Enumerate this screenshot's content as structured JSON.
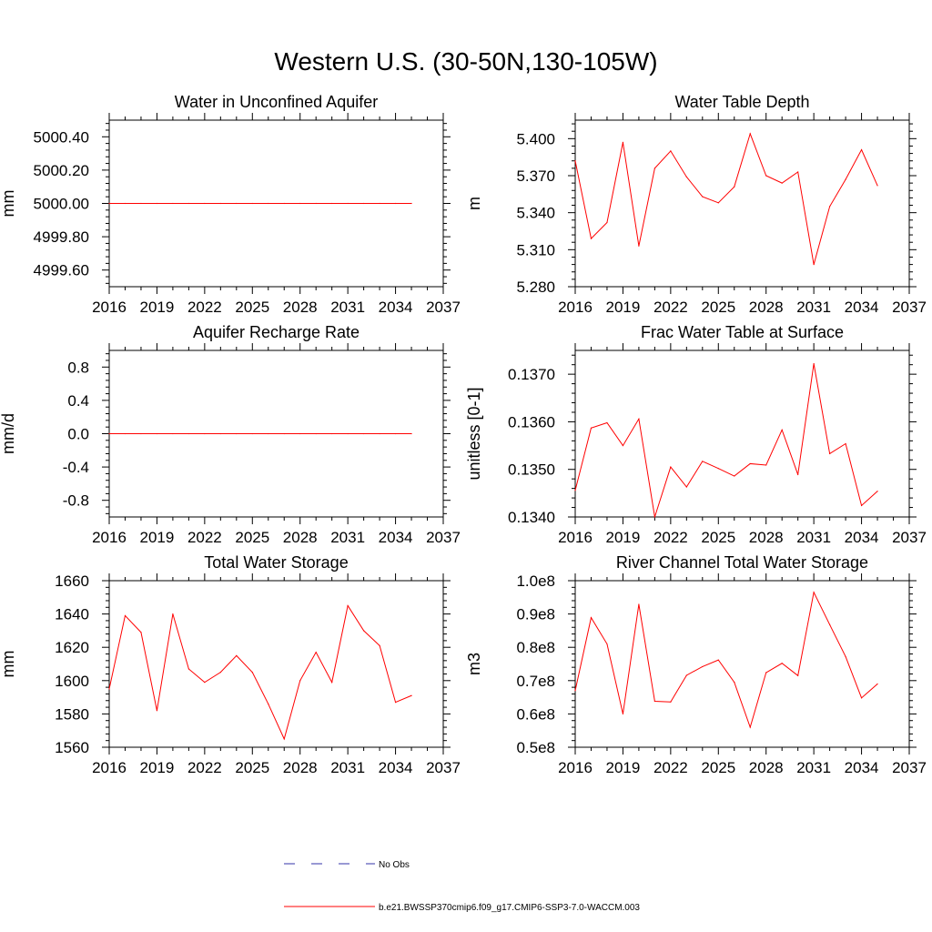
{
  "title": "Western U.S. (30-50N,130-105W)",
  "colors": {
    "series": "#ff0000",
    "obs": "#3333aa",
    "axis": "#000000"
  },
  "legend": {
    "obs_label": "No Obs",
    "model_label": "b.e21.BWSSP370cmip6.f09_g17.CMIP6-SSP3-7.0-WACCM.003"
  },
  "chart_data": [
    {
      "type": "line",
      "title": "Water in Unconfined Aquifer",
      "xlabel": "",
      "ylabel": "mm",
      "xlim": [
        2016,
        2037
      ],
      "ylim": [
        4999.5,
        5000.5
      ],
      "x_ticks": [
        2016,
        2019,
        2022,
        2025,
        2028,
        2031,
        2034,
        2037
      ],
      "y_ticks": [
        4999.6,
        4999.8,
        5000.0,
        5000.2,
        5000.4
      ],
      "y_tick_labels": [
        "4999.60",
        "4999.80",
        "5000.00",
        "5000.20",
        "5000.40"
      ],
      "x": [
        2016,
        2017,
        2018,
        2019,
        2020,
        2021,
        2022,
        2023,
        2024,
        2025,
        2026,
        2027,
        2028,
        2029,
        2030,
        2031,
        2032,
        2033,
        2034,
        2035
      ],
      "series": [
        {
          "values": [
            5000.0,
            5000.0,
            5000.0,
            5000.0,
            5000.0,
            5000.0,
            5000.0,
            5000.0,
            5000.0,
            5000.0,
            5000.0,
            5000.0,
            5000.0,
            5000.0,
            5000.0,
            5000.0,
            5000.0,
            5000.0,
            5000.0,
            5000.0
          ]
        }
      ]
    },
    {
      "type": "line",
      "title": "Water Table Depth",
      "xlabel": "",
      "ylabel": "m",
      "xlim": [
        2016,
        2037
      ],
      "ylim": [
        5.28,
        5.415
      ],
      "x_ticks": [
        2016,
        2019,
        2022,
        2025,
        2028,
        2031,
        2034,
        2037
      ],
      "y_ticks": [
        5.28,
        5.31,
        5.34,
        5.37,
        5.4
      ],
      "y_tick_labels": [
        "5.280",
        "5.310",
        "5.340",
        "5.370",
        "5.400"
      ],
      "x": [
        2016,
        2017,
        2018,
        2019,
        2020,
        2021,
        2022,
        2023,
        2024,
        2025,
        2026,
        2027,
        2028,
        2029,
        2030,
        2031,
        2032,
        2033,
        2034,
        2035
      ],
      "series": [
        {
          "values": [
            5.382,
            5.319,
            5.332,
            5.397,
            5.313,
            5.376,
            5.39,
            5.369,
            5.353,
            5.348,
            5.361,
            5.404,
            5.37,
            5.364,
            5.373,
            5.298,
            5.345,
            5.367,
            5.391,
            5.362
          ]
        }
      ]
    },
    {
      "type": "line",
      "title": "Aquifer Recharge Rate",
      "xlabel": "",
      "ylabel": "mm/d",
      "xlim": [
        2016,
        2037
      ],
      "ylim": [
        -1.0,
        1.0
      ],
      "x_ticks": [
        2016,
        2019,
        2022,
        2025,
        2028,
        2031,
        2034,
        2037
      ],
      "y_ticks": [
        -0.8,
        -0.4,
        0.0,
        0.4,
        0.8
      ],
      "y_tick_labels": [
        "-0.8",
        "-0.4",
        "0.0",
        "0.4",
        "0.8"
      ],
      "x": [
        2016,
        2017,
        2018,
        2019,
        2020,
        2021,
        2022,
        2023,
        2024,
        2025,
        2026,
        2027,
        2028,
        2029,
        2030,
        2031,
        2032,
        2033,
        2034,
        2035
      ],
      "series": [
        {
          "values": [
            0,
            0,
            0,
            0,
            0,
            0,
            0,
            0,
            0,
            0,
            0,
            0,
            0,
            0,
            0,
            0,
            0,
            0,
            0,
            0
          ]
        }
      ]
    },
    {
      "type": "line",
      "title": "Frac Water Table at Surface",
      "xlabel": "",
      "ylabel": "unitless [0-1]",
      "xlim": [
        2016,
        2037
      ],
      "ylim": [
        0.134,
        0.1375
      ],
      "x_ticks": [
        2016,
        2019,
        2022,
        2025,
        2028,
        2031,
        2034,
        2037
      ],
      "y_ticks": [
        0.134,
        0.135,
        0.136,
        0.137
      ],
      "y_tick_labels": [
        "0.1340",
        "0.1350",
        "0.1360",
        "0.1370"
      ],
      "x": [
        2016,
        2017,
        2018,
        2019,
        2020,
        2021,
        2022,
        2023,
        2024,
        2025,
        2026,
        2027,
        2028,
        2029,
        2030,
        2031,
        2032,
        2033,
        2034,
        2035
      ],
      "series": [
        {
          "values": [
            0.13456,
            0.13587,
            0.13598,
            0.1355,
            0.13606,
            0.134,
            0.13505,
            0.13463,
            0.13517,
            0.13502,
            0.13486,
            0.13512,
            0.13509,
            0.13583,
            0.13489,
            0.13722,
            0.13533,
            0.13554,
            0.13424,
            0.13454
          ]
        }
      ]
    },
    {
      "type": "line",
      "title": "Total Water Storage",
      "xlabel": "",
      "ylabel": "mm",
      "xlim": [
        2016,
        2037
      ],
      "ylim": [
        1560,
        1660
      ],
      "x_ticks": [
        2016,
        2019,
        2022,
        2025,
        2028,
        2031,
        2034,
        2037
      ],
      "y_ticks": [
        1560,
        1580,
        1600,
        1620,
        1640,
        1660
      ],
      "y_tick_labels": [
        "1560",
        "1580",
        "1600",
        "1620",
        "1640",
        "1660"
      ],
      "x": [
        2016,
        2017,
        2018,
        2019,
        2020,
        2021,
        2022,
        2023,
        2024,
        2025,
        2026,
        2027,
        2028,
        2029,
        2030,
        2031,
        2032,
        2033,
        2034,
        2035
      ],
      "series": [
        {
          "values": [
            1595,
            1639,
            1629,
            1582,
            1640,
            1607,
            1599,
            1605,
            1615,
            1605,
            1586,
            1565,
            1600,
            1617,
            1599,
            1645,
            1630,
            1621,
            1587,
            1591
          ]
        }
      ]
    },
    {
      "type": "line",
      "title": "River Channel Total Water Storage",
      "xlabel": "",
      "ylabel": "m3",
      "xlim": [
        2016,
        2037
      ],
      "ylim": [
        50000000.0,
        100000000.0
      ],
      "x_ticks": [
        2016,
        2019,
        2022,
        2025,
        2028,
        2031,
        2034,
        2037
      ],
      "y_ticks": [
        50000000.0,
        60000000.0,
        70000000.0,
        80000000.0,
        90000000.0,
        100000000.0
      ],
      "y_tick_labels": [
        "0.5e8",
        "0.6e8",
        "0.7e8",
        "0.8e8",
        "0.9e8",
        "1.0e8"
      ],
      "x": [
        2016,
        2017,
        2018,
        2019,
        2020,
        2021,
        2022,
        2023,
        2024,
        2025,
        2026,
        2027,
        2028,
        2029,
        2030,
        2031,
        2032,
        2033,
        2034,
        2035
      ],
      "series": [
        {
          "values": [
            67000000.0,
            88900000.0,
            81000000.0,
            60000000.0,
            92900000.0,
            63800000.0,
            63600000.0,
            71600000.0,
            74200000.0,
            76200000.0,
            69500000.0,
            56000000.0,
            72400000.0,
            75200000.0,
            71500000.0,
            96500000.0,
            86800000.0,
            77200000.0,
            64800000.0,
            69000000.0
          ]
        }
      ]
    }
  ]
}
